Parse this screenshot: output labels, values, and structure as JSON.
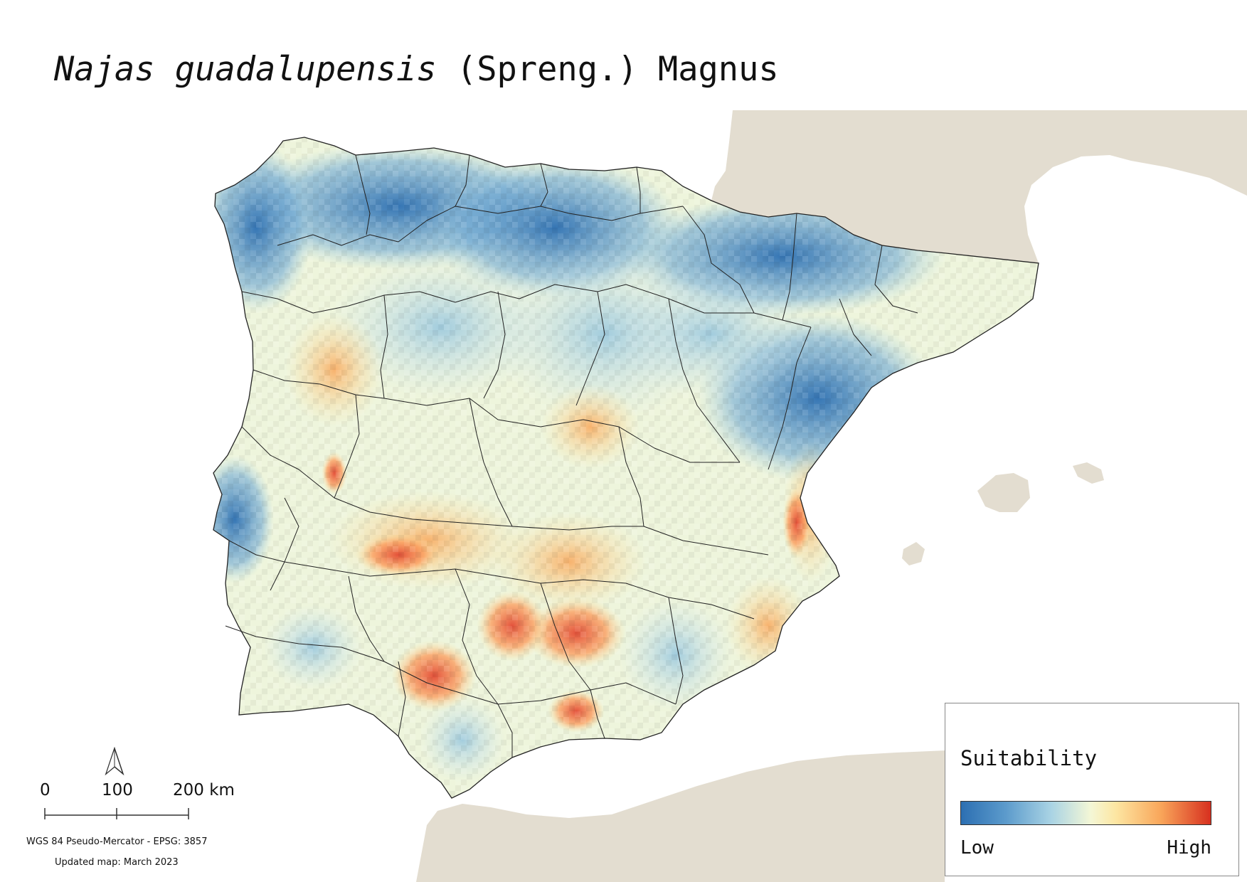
{
  "title": {
    "species_italic": "Najas guadalupensis",
    "authority": " (Spreng.) Magnus"
  },
  "legend": {
    "title": "Suitability",
    "low_label": "Low",
    "high_label": "High",
    "colors": [
      "#2c6fb2",
      "#5c9bcc",
      "#a9d3e4",
      "#f4f7d6",
      "#fde6a2",
      "#f9a65a",
      "#d7301f"
    ]
  },
  "scale_bar": {
    "labels": [
      "0",
      "100",
      "200 km"
    ]
  },
  "crs": "WGS 84 Pseudo-Mercator  - EPSG: 3857",
  "updated": "Updated map: March 2023",
  "colors": {
    "land_background": "#e3ddd0",
    "sea": "#ffffff",
    "boundary": "#222222"
  },
  "north_arrow_icon": "north-arrow-icon"
}
